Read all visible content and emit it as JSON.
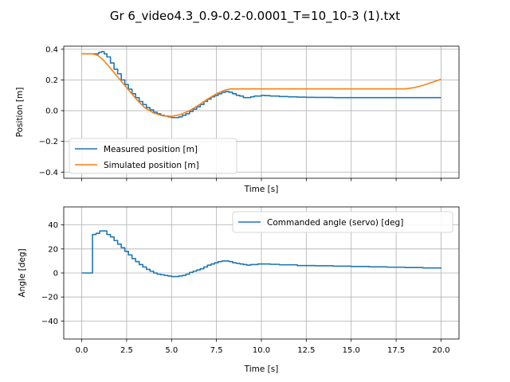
{
  "figure": {
    "suptitle": "Gr 6_video4.3_0.9-0.2-0.0001_T=10_10-3 (1).txt"
  },
  "chart_data": [
    {
      "type": "line",
      "xlabel": "Time [s]",
      "ylabel": "Position [m]",
      "xlim": [
        -1.0,
        21.0
      ],
      "ylim": [
        -0.44,
        0.42
      ],
      "xticks": [
        0.0,
        2.5,
        5.0,
        7.5,
        10.0,
        12.5,
        15.0,
        17.5,
        20.0
      ],
      "xtick_labels_visible": false,
      "yticks": [
        0.4,
        0.2,
        0.0,
        -0.2,
        -0.4
      ],
      "ytick_labels": [
        "0.4",
        "0.2",
        "0.0",
        "−0.2",
        "−0.4"
      ],
      "grid": true,
      "legend_position": "lower-left",
      "series": [
        {
          "name": "Measured position [m]",
          "color": "#1f77b4",
          "step": true,
          "x": [
            0.0,
            0.5,
            0.8,
            0.95,
            1.1,
            1.25,
            1.4,
            1.6,
            1.8,
            2.0,
            2.2,
            2.4,
            2.6,
            2.8,
            3.0,
            3.2,
            3.4,
            3.6,
            3.8,
            4.0,
            4.2,
            4.4,
            4.6,
            4.8,
            5.0,
            5.2,
            5.4,
            5.6,
            5.8,
            6.0,
            6.2,
            6.4,
            6.6,
            6.8,
            7.0,
            7.2,
            7.4,
            7.6,
            7.8,
            8.0,
            8.2,
            8.4,
            8.6,
            8.8,
            9.0,
            9.2,
            9.4,
            9.6,
            9.8,
            10.0,
            10.2,
            10.5,
            11.0,
            11.5,
            12.0,
            12.5,
            13.0,
            14.0,
            15.0,
            16.0,
            17.0,
            18.0,
            19.0,
            20.0
          ],
          "y": [
            0.37,
            0.37,
            0.37,
            0.38,
            0.385,
            0.37,
            0.35,
            0.31,
            0.27,
            0.24,
            0.2,
            0.17,
            0.14,
            0.11,
            0.085,
            0.06,
            0.04,
            0.02,
            0.005,
            -0.01,
            -0.02,
            -0.03,
            -0.035,
            -0.04,
            -0.045,
            -0.045,
            -0.04,
            -0.03,
            -0.02,
            -0.005,
            0.01,
            0.025,
            0.04,
            0.06,
            0.075,
            0.09,
            0.1,
            0.11,
            0.12,
            0.125,
            0.12,
            0.11,
            0.1,
            0.095,
            0.085,
            0.085,
            0.09,
            0.095,
            0.095,
            0.1,
            0.098,
            0.095,
            0.092,
            0.09,
            0.088,
            0.087,
            0.086,
            0.085,
            0.085,
            0.085,
            0.085,
            0.085,
            0.085,
            0.085
          ]
        },
        {
          "name": "Simulated position [m]",
          "color": "#ff7f0e",
          "step": false,
          "x": [
            0.0,
            0.6,
            0.9,
            1.2,
            1.5,
            2.0,
            2.5,
            3.0,
            3.5,
            4.0,
            4.5,
            5.0,
            5.5,
            6.0,
            6.5,
            7.0,
            7.5,
            8.0,
            8.3,
            8.6,
            9.0,
            10.0,
            12.0,
            14.0,
            16.0,
            17.5,
            18.0,
            18.5,
            19.0,
            19.5,
            20.0
          ],
          "y": [
            0.37,
            0.37,
            0.36,
            0.33,
            0.29,
            0.22,
            0.15,
            0.08,
            0.02,
            -0.015,
            -0.033,
            -0.037,
            -0.025,
            0.0,
            0.035,
            0.075,
            0.11,
            0.135,
            0.142,
            0.142,
            0.142,
            0.142,
            0.142,
            0.142,
            0.142,
            0.142,
            0.142,
            0.15,
            0.165,
            0.185,
            0.205
          ]
        }
      ]
    },
    {
      "type": "line",
      "xlabel": "Time [s]",
      "ylabel": "Angle [deg]",
      "xlim": [
        -1.0,
        21.0
      ],
      "ylim": [
        -55,
        55
      ],
      "xticks": [
        0.0,
        2.5,
        5.0,
        7.5,
        10.0,
        12.5,
        15.0,
        17.5,
        20.0
      ],
      "xtick_labels": [
        "0.0",
        "2.5",
        "5.0",
        "7.5",
        "10.0",
        "12.5",
        "15.0",
        "17.5",
        "20.0"
      ],
      "yticks": [
        40,
        20,
        0,
        -20,
        -40
      ],
      "ytick_labels": [
        "40",
        "20",
        "0",
        "−20",
        "−40"
      ],
      "grid": true,
      "legend_position": "upper-right",
      "series": [
        {
          "name": "Commanded angle (servo) [deg]",
          "color": "#1f77b4",
          "step": true,
          "x": [
            0.0,
            0.55,
            0.6,
            0.8,
            1.0,
            1.2,
            1.4,
            1.6,
            1.8,
            2.0,
            2.2,
            2.4,
            2.6,
            2.8,
            3.0,
            3.2,
            3.4,
            3.6,
            3.8,
            4.0,
            4.2,
            4.4,
            4.6,
            4.8,
            5.0,
            5.2,
            5.4,
            5.6,
            5.8,
            6.0,
            6.2,
            6.4,
            6.6,
            6.8,
            7.0,
            7.2,
            7.4,
            7.6,
            7.8,
            8.0,
            8.2,
            8.4,
            8.6,
            8.8,
            9.0,
            9.2,
            9.4,
            9.6,
            9.8,
            10.0,
            10.2,
            10.5,
            11.0,
            12.0,
            13.0,
            14.0,
            15.0,
            16.0,
            17.0,
            18.0,
            19.0,
            20.0
          ],
          "y": [
            0,
            0,
            32,
            33,
            35,
            35,
            32,
            30,
            27,
            24,
            21,
            18,
            15,
            12,
            9.5,
            7,
            5,
            3,
            1.5,
            0,
            -1,
            -1.5,
            -2,
            -2.5,
            -3,
            -3,
            -2.5,
            -2,
            -1,
            0.5,
            1.5,
            2.5,
            3.5,
            5,
            6.5,
            7.5,
            8.5,
            9.5,
            10,
            10,
            9.5,
            8.5,
            8,
            7.5,
            7,
            6.5,
            7,
            7,
            7.5,
            7.5,
            7.5,
            7.2,
            6.8,
            6.2,
            6.0,
            5.7,
            5.4,
            5.1,
            4.8,
            4.5,
            4.2,
            3.8
          ]
        }
      ]
    }
  ]
}
